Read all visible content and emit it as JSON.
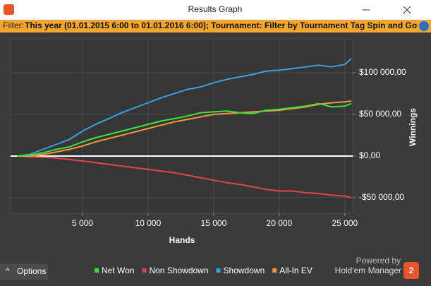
{
  "window": {
    "title": "Results Graph"
  },
  "filter": {
    "label": "Filter:",
    "text": "This year (01.01.2015 6:00 to 01.01.2016 6:00); Tournament: Filter by Tournament Tag  Spin and Go AND Filter by"
  },
  "chart_data": {
    "type": "line",
    "x_label": "Hands",
    "y_label": "Winnings",
    "x": [
      0,
      1000,
      2000,
      3000,
      4000,
      5000,
      6000,
      7000,
      8000,
      9000,
      10000,
      11000,
      12000,
      13000,
      14000,
      15000,
      16000,
      17000,
      18000,
      19000,
      20000,
      21000,
      22000,
      23000,
      24000,
      25000,
      25500
    ],
    "series": [
      {
        "name": "Net Won",
        "color": "#3ee03e",
        "values": [
          0,
          1000,
          4000,
          8000,
          11000,
          17000,
          22000,
          26000,
          30000,
          34000,
          38000,
          42000,
          45000,
          48000,
          52000,
          53000,
          54000,
          52000,
          51000,
          55000,
          56000,
          58000,
          60000,
          63000,
          59000,
          60000,
          63000
        ]
      },
      {
        "name": "Non Showdown",
        "color": "#e04848",
        "values": [
          0,
          -1000,
          -1500,
          -2500,
          -4000,
          -6000,
          -8000,
          -10000,
          -12000,
          -14000,
          -16000,
          -18000,
          -20000,
          -23000,
          -26000,
          -29000,
          -32000,
          -34000,
          -37000,
          -40000,
          -42000,
          -42000,
          -44000,
          -45000,
          -47000,
          -48000,
          -50000
        ]
      },
      {
        "name": "Showdown",
        "color": "#3a9ee0",
        "values": [
          0,
          2000,
          8000,
          14000,
          20000,
          30000,
          38000,
          45000,
          52000,
          58000,
          64000,
          70000,
          75000,
          80000,
          83000,
          88000,
          92000,
          95000,
          98000,
          102000,
          103000,
          105000,
          107000,
          109000,
          107000,
          110000,
          117000
        ]
      },
      {
        "name": "All-In EV",
        "color": "#f0993a",
        "values": [
          0,
          0,
          2000,
          5000,
          8000,
          12000,
          17000,
          21000,
          25000,
          29000,
          33000,
          37000,
          41000,
          44000,
          47000,
          50000,
          51000,
          52000,
          53000,
          54000,
          55000,
          57000,
          59000,
          62000,
          64000,
          65000,
          66000
        ]
      }
    ],
    "xlim": [
      0,
      25600
    ],
    "ylim": [
      -67000,
      139000
    ],
    "xticks": [
      {
        "value": 5000,
        "label": "5 000"
      },
      {
        "value": 10000,
        "label": "10 000"
      },
      {
        "value": 15000,
        "label": "15 000"
      },
      {
        "value": 20000,
        "label": "20 000"
      },
      {
        "value": 25000,
        "label": "25 000"
      }
    ],
    "yticks": [
      {
        "value": -50000,
        "label": "-$50 000,00"
      },
      {
        "value": 0,
        "label": "$0,00"
      },
      {
        "value": 50000,
        "label": "$50 000,00"
      },
      {
        "value": 100000,
        "label": "$100 000,00"
      }
    ],
    "grid": true
  },
  "footer": {
    "options": "Options",
    "powered_by": "Powered by",
    "brand": "Hold'em Manager",
    "brand_badge": "2"
  }
}
